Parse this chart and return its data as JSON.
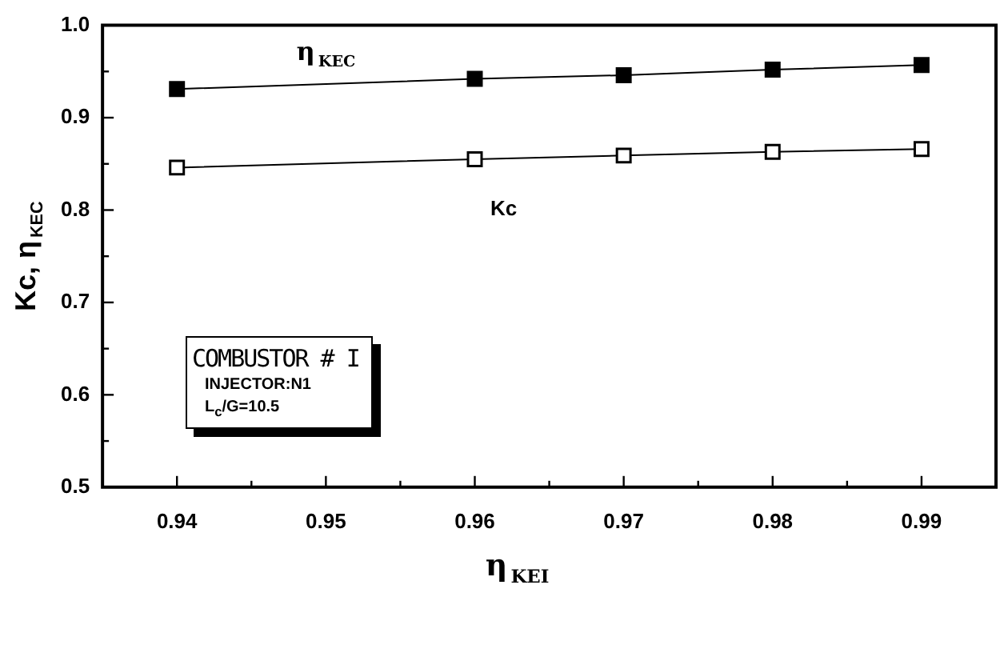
{
  "chart_data": {
    "type": "line",
    "xlabel": "η$_{KEI}$",
    "ylabel": "Kc, η$_{KEC}$",
    "x": [
      0.94,
      0.96,
      0.97,
      0.98,
      0.99
    ],
    "series": [
      {
        "name": "η$_{KEC}$",
        "color": "#000000",
        "values": [
          0.931,
          0.942,
          0.946,
          0.952,
          0.957
        ]
      },
      {
        "name": "Kc",
        "color": "#000000",
        "values": [
          0.846,
          0.855,
          0.859,
          0.863,
          0.866
        ]
      }
    ],
    "xlim": [
      0.935,
      0.995
    ],
    "xticks": [
      0.94,
      {
        "value": 0.945,
        "label": null
      },
      0.95,
      {
        "value": 0.955,
        "label": null
      },
      0.96,
      {
        "value": 0.965,
        "label": null
      },
      0.97,
      {
        "value": 0.975,
        "label": null
      },
      0.98,
      {
        "value": 0.985,
        "label": null
      },
      0.99
    ],
    "ylim": [
      0.5,
      1.0
    ],
    "yticks": [
      0.5,
      {
        "value": 0.55,
        "label": null
      },
      0.6,
      {
        "value": 0.65,
        "label": null
      },
      0.7,
      {
        "value": 0.75,
        "label": null
      },
      0.8,
      {
        "value": 0.85,
        "label": null
      },
      0.9,
      {
        "value": 0.95,
        "label": null
      },
      {
        "value": 1.0,
        "label": "1.0"
      }
    ],
    "annotations": [
      "COMBUSTOR # I",
      "INJECTOR:N1",
      "L$_{c}$/G=10.5"
    ],
    "marker": "square",
    "line_style": "solid",
    "grid": false,
    "legend": false
  }
}
